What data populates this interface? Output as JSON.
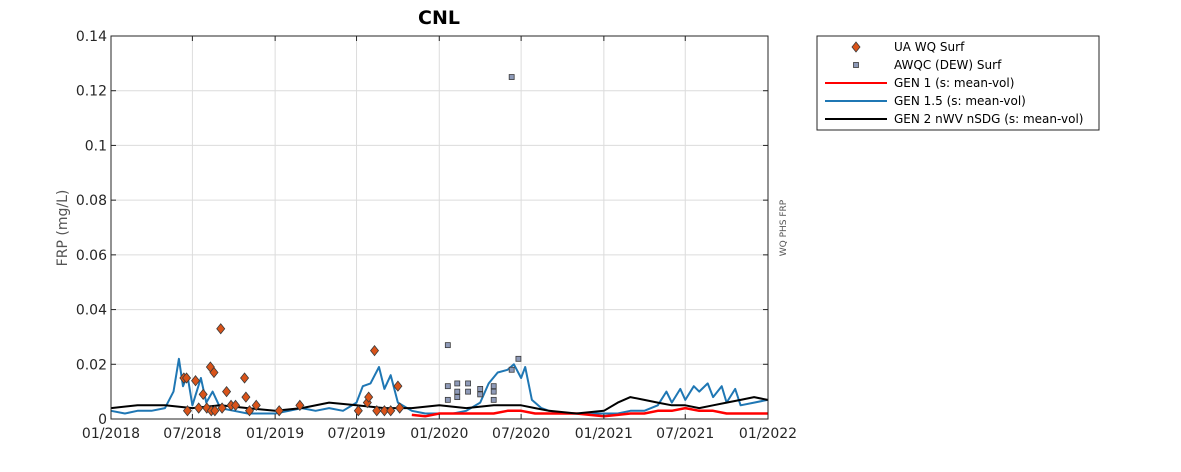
{
  "chart_data": {
    "type": "line",
    "title": "CNL",
    "ylabel": "FRP (mg/L)",
    "side_label": "WQ PHS FRP",
    "xlabel": "",
    "xlim": [
      "2018-01-01",
      "2022-01-01"
    ],
    "ylim": [
      0,
      0.14
    ],
    "grid": true,
    "legend_position": "outside-top-right",
    "x_ticks": [
      {
        "date": "2018-01-01",
        "label": "01/2018"
      },
      {
        "date": "2018-07-01",
        "label": "07/2018"
      },
      {
        "date": "2019-01-01",
        "label": "01/2019"
      },
      {
        "date": "2019-07-01",
        "label": "07/2019"
      },
      {
        "date": "2020-01-01",
        "label": "01/2020"
      },
      {
        "date": "2020-07-01",
        "label": "07/2020"
      },
      {
        "date": "2021-01-01",
        "label": "01/2021"
      },
      {
        "date": "2021-07-01",
        "label": "07/2021"
      },
      {
        "date": "2022-01-01",
        "label": "01/2022"
      }
    ],
    "y_ticks": [
      {
        "value": 0,
        "label": "0"
      },
      {
        "value": 0.02,
        "label": "0.02"
      },
      {
        "value": 0.04,
        "label": "0.04"
      },
      {
        "value": 0.06,
        "label": "0.06"
      },
      {
        "value": 0.08,
        "label": "0.08"
      },
      {
        "value": 0.1,
        "label": "0.1"
      },
      {
        "value": 0.12,
        "label": "0.12"
      },
      {
        "value": 0.14,
        "label": "0.14"
      }
    ],
    "series": [
      {
        "name": "UA WQ Surf",
        "kind": "marker",
        "marker": "diamond",
        "color": "#D95319",
        "points": [
          [
            "2018-06-12",
            0.015
          ],
          [
            "2018-06-18",
            0.015
          ],
          [
            "2018-06-20",
            0.003
          ],
          [
            "2018-07-08",
            0.014
          ],
          [
            "2018-07-15",
            0.004
          ],
          [
            "2018-07-25",
            0.009
          ],
          [
            "2018-08-02",
            0.004
          ],
          [
            "2018-08-10",
            0.019
          ],
          [
            "2018-08-12",
            0.003
          ],
          [
            "2018-08-18",
            0.017
          ],
          [
            "2018-08-20",
            0.003
          ],
          [
            "2018-09-02",
            0.033
          ],
          [
            "2018-09-05",
            0.004
          ],
          [
            "2018-09-15",
            0.01
          ],
          [
            "2018-09-25",
            0.005
          ],
          [
            "2018-10-05",
            0.005
          ],
          [
            "2018-10-25",
            0.015
          ],
          [
            "2018-10-28",
            0.008
          ],
          [
            "2018-11-05",
            0.003
          ],
          [
            "2018-11-20",
            0.005
          ],
          [
            "2019-01-10",
            0.003
          ],
          [
            "2019-02-25",
            0.005
          ],
          [
            "2019-07-05",
            0.003
          ],
          [
            "2019-07-25",
            0.006
          ],
          [
            "2019-07-28",
            0.008
          ],
          [
            "2019-08-10",
            0.025
          ],
          [
            "2019-08-15",
            0.003
          ],
          [
            "2019-09-01",
            0.003
          ],
          [
            "2019-09-15",
            0.003
          ],
          [
            "2019-10-01",
            0.012
          ],
          [
            "2019-10-05",
            0.004
          ]
        ]
      },
      {
        "name": "AWQC (DEW) Surf",
        "kind": "marker",
        "marker": "square",
        "color": "#8E9AB8",
        "points": [
          [
            "2020-01-20",
            0.027
          ],
          [
            "2020-01-20",
            0.012
          ],
          [
            "2020-01-20",
            0.007
          ],
          [
            "2020-02-10",
            0.013
          ],
          [
            "2020-02-10",
            0.01
          ],
          [
            "2020-02-10",
            0.008
          ],
          [
            "2020-03-05",
            0.013
          ],
          [
            "2020-03-05",
            0.01
          ],
          [
            "2020-04-01",
            0.011
          ],
          [
            "2020-04-01",
            0.009
          ],
          [
            "2020-05-01",
            0.012
          ],
          [
            "2020-05-01",
            0.01
          ],
          [
            "2020-05-01",
            0.007
          ],
          [
            "2020-06-10",
            0.125
          ],
          [
            "2020-06-10",
            0.018
          ],
          [
            "2020-06-25",
            0.022
          ]
        ]
      },
      {
        "name": "GEN 1 (s: mean-vol)",
        "kind": "line",
        "color": "#FF0000",
        "points": [
          [
            "2019-11-01",
            0.0015
          ],
          [
            "2019-12-01",
            0.001
          ],
          [
            "2020-01-01",
            0.002
          ],
          [
            "2020-02-01",
            0.002
          ],
          [
            "2020-03-01",
            0.002
          ],
          [
            "2020-04-01",
            0.002
          ],
          [
            "2020-05-01",
            0.002
          ],
          [
            "2020-06-01",
            0.003
          ],
          [
            "2020-07-01",
            0.003
          ],
          [
            "2020-08-01",
            0.002
          ],
          [
            "2020-09-01",
            0.002
          ],
          [
            "2020-10-01",
            0.002
          ],
          [
            "2020-11-01",
            0.002
          ],
          [
            "2020-12-01",
            0.0015
          ],
          [
            "2021-01-01",
            0.001
          ],
          [
            "2021-02-01",
            0.0015
          ],
          [
            "2021-03-01",
            0.002
          ],
          [
            "2021-04-01",
            0.002
          ],
          [
            "2021-05-01",
            0.003
          ],
          [
            "2021-06-01",
            0.003
          ],
          [
            "2021-07-01",
            0.004
          ],
          [
            "2021-08-01",
            0.003
          ],
          [
            "2021-09-01",
            0.003
          ],
          [
            "2021-10-01",
            0.002
          ],
          [
            "2021-11-01",
            0.002
          ],
          [
            "2021-12-01",
            0.002
          ],
          [
            "2021-12-31",
            0.002
          ]
        ]
      },
      {
        "name": "GEN 1.5 (s: mean-vol)",
        "kind": "line",
        "color": "#1F77B4",
        "points": [
          [
            "2018-01-01",
            0.003
          ],
          [
            "2018-02-01",
            0.002
          ],
          [
            "2018-03-01",
            0.003
          ],
          [
            "2018-04-01",
            0.003
          ],
          [
            "2018-05-01",
            0.004
          ],
          [
            "2018-05-20",
            0.01
          ],
          [
            "2018-06-01",
            0.022
          ],
          [
            "2018-06-10",
            0.012
          ],
          [
            "2018-06-20",
            0.016
          ],
          [
            "2018-07-01",
            0.005
          ],
          [
            "2018-07-20",
            0.015
          ],
          [
            "2018-08-01",
            0.006
          ],
          [
            "2018-08-15",
            0.01
          ],
          [
            "2018-09-01",
            0.004
          ],
          [
            "2018-10-01",
            0.003
          ],
          [
            "2018-11-01",
            0.002
          ],
          [
            "2018-12-01",
            0.002
          ],
          [
            "2019-01-01",
            0.002
          ],
          [
            "2019-02-01",
            0.003
          ],
          [
            "2019-03-01",
            0.004
          ],
          [
            "2019-04-01",
            0.003
          ],
          [
            "2019-05-01",
            0.004
          ],
          [
            "2019-06-01",
            0.003
          ],
          [
            "2019-07-01",
            0.006
          ],
          [
            "2019-07-15",
            0.012
          ],
          [
            "2019-08-01",
            0.013
          ],
          [
            "2019-08-20",
            0.019
          ],
          [
            "2019-09-01",
            0.011
          ],
          [
            "2019-09-15",
            0.016
          ],
          [
            "2019-10-01",
            0.006
          ],
          [
            "2019-11-01",
            0.003
          ],
          [
            "2019-12-01",
            0.002
          ],
          [
            "2020-01-01",
            0.002
          ],
          [
            "2020-02-01",
            0.002
          ],
          [
            "2020-03-01",
            0.003
          ],
          [
            "2020-04-01",
            0.006
          ],
          [
            "2020-04-20",
            0.013
          ],
          [
            "2020-05-10",
            0.017
          ],
          [
            "2020-06-01",
            0.018
          ],
          [
            "2020-06-15",
            0.02
          ],
          [
            "2020-07-01",
            0.015
          ],
          [
            "2020-07-10",
            0.019
          ],
          [
            "2020-07-25",
            0.007
          ],
          [
            "2020-08-15",
            0.004
          ],
          [
            "2020-09-01",
            0.003
          ],
          [
            "2020-10-01",
            0.002
          ],
          [
            "2020-11-01",
            0.002
          ],
          [
            "2020-12-01",
            0.002
          ],
          [
            "2021-01-01",
            0.002
          ],
          [
            "2021-02-01",
            0.002
          ],
          [
            "2021-03-01",
            0.003
          ],
          [
            "2021-04-01",
            0.003
          ],
          [
            "2021-05-01",
            0.005
          ],
          [
            "2021-05-20",
            0.01
          ],
          [
            "2021-06-01",
            0.006
          ],
          [
            "2021-06-20",
            0.011
          ],
          [
            "2021-07-01",
            0.007
          ],
          [
            "2021-07-20",
            0.012
          ],
          [
            "2021-08-01",
            0.01
          ],
          [
            "2021-08-20",
            0.013
          ],
          [
            "2021-09-01",
            0.008
          ],
          [
            "2021-09-20",
            0.012
          ],
          [
            "2021-10-01",
            0.006
          ],
          [
            "2021-10-20",
            0.011
          ],
          [
            "2021-11-01",
            0.005
          ],
          [
            "2021-12-01",
            0.006
          ],
          [
            "2021-12-31",
            0.007
          ]
        ]
      },
      {
        "name": "GEN 2 nWV nSDG (s: mean-vol)",
        "kind": "line",
        "color": "#000000",
        "points": [
          [
            "2018-01-01",
            0.004
          ],
          [
            "2018-03-01",
            0.005
          ],
          [
            "2018-05-01",
            0.005
          ],
          [
            "2018-07-01",
            0.004
          ],
          [
            "2018-09-01",
            0.005
          ],
          [
            "2018-11-01",
            0.004
          ],
          [
            "2019-01-01",
            0.003
          ],
          [
            "2019-03-01",
            0.004
          ],
          [
            "2019-05-01",
            0.006
          ],
          [
            "2019-07-01",
            0.005
          ],
          [
            "2019-09-01",
            0.004
          ],
          [
            "2019-11-01",
            0.004
          ],
          [
            "2020-01-01",
            0.005
          ],
          [
            "2020-03-01",
            0.004
          ],
          [
            "2020-05-01",
            0.005
          ],
          [
            "2020-07-01",
            0.005
          ],
          [
            "2020-08-01",
            0.004
          ],
          [
            "2020-09-01",
            0.003
          ],
          [
            "2020-11-01",
            0.002
          ],
          [
            "2021-01-01",
            0.003
          ],
          [
            "2021-02-01",
            0.006
          ],
          [
            "2021-03-01",
            0.008
          ],
          [
            "2021-04-01",
            0.007
          ],
          [
            "2021-05-01",
            0.006
          ],
          [
            "2021-06-01",
            0.005
          ],
          [
            "2021-07-01",
            0.005
          ],
          [
            "2021-08-01",
            0.004
          ],
          [
            "2021-09-01",
            0.005
          ],
          [
            "2021-10-01",
            0.006
          ],
          [
            "2021-11-01",
            0.007
          ],
          [
            "2021-12-01",
            0.008
          ],
          [
            "2021-12-31",
            0.007
          ]
        ]
      }
    ]
  }
}
